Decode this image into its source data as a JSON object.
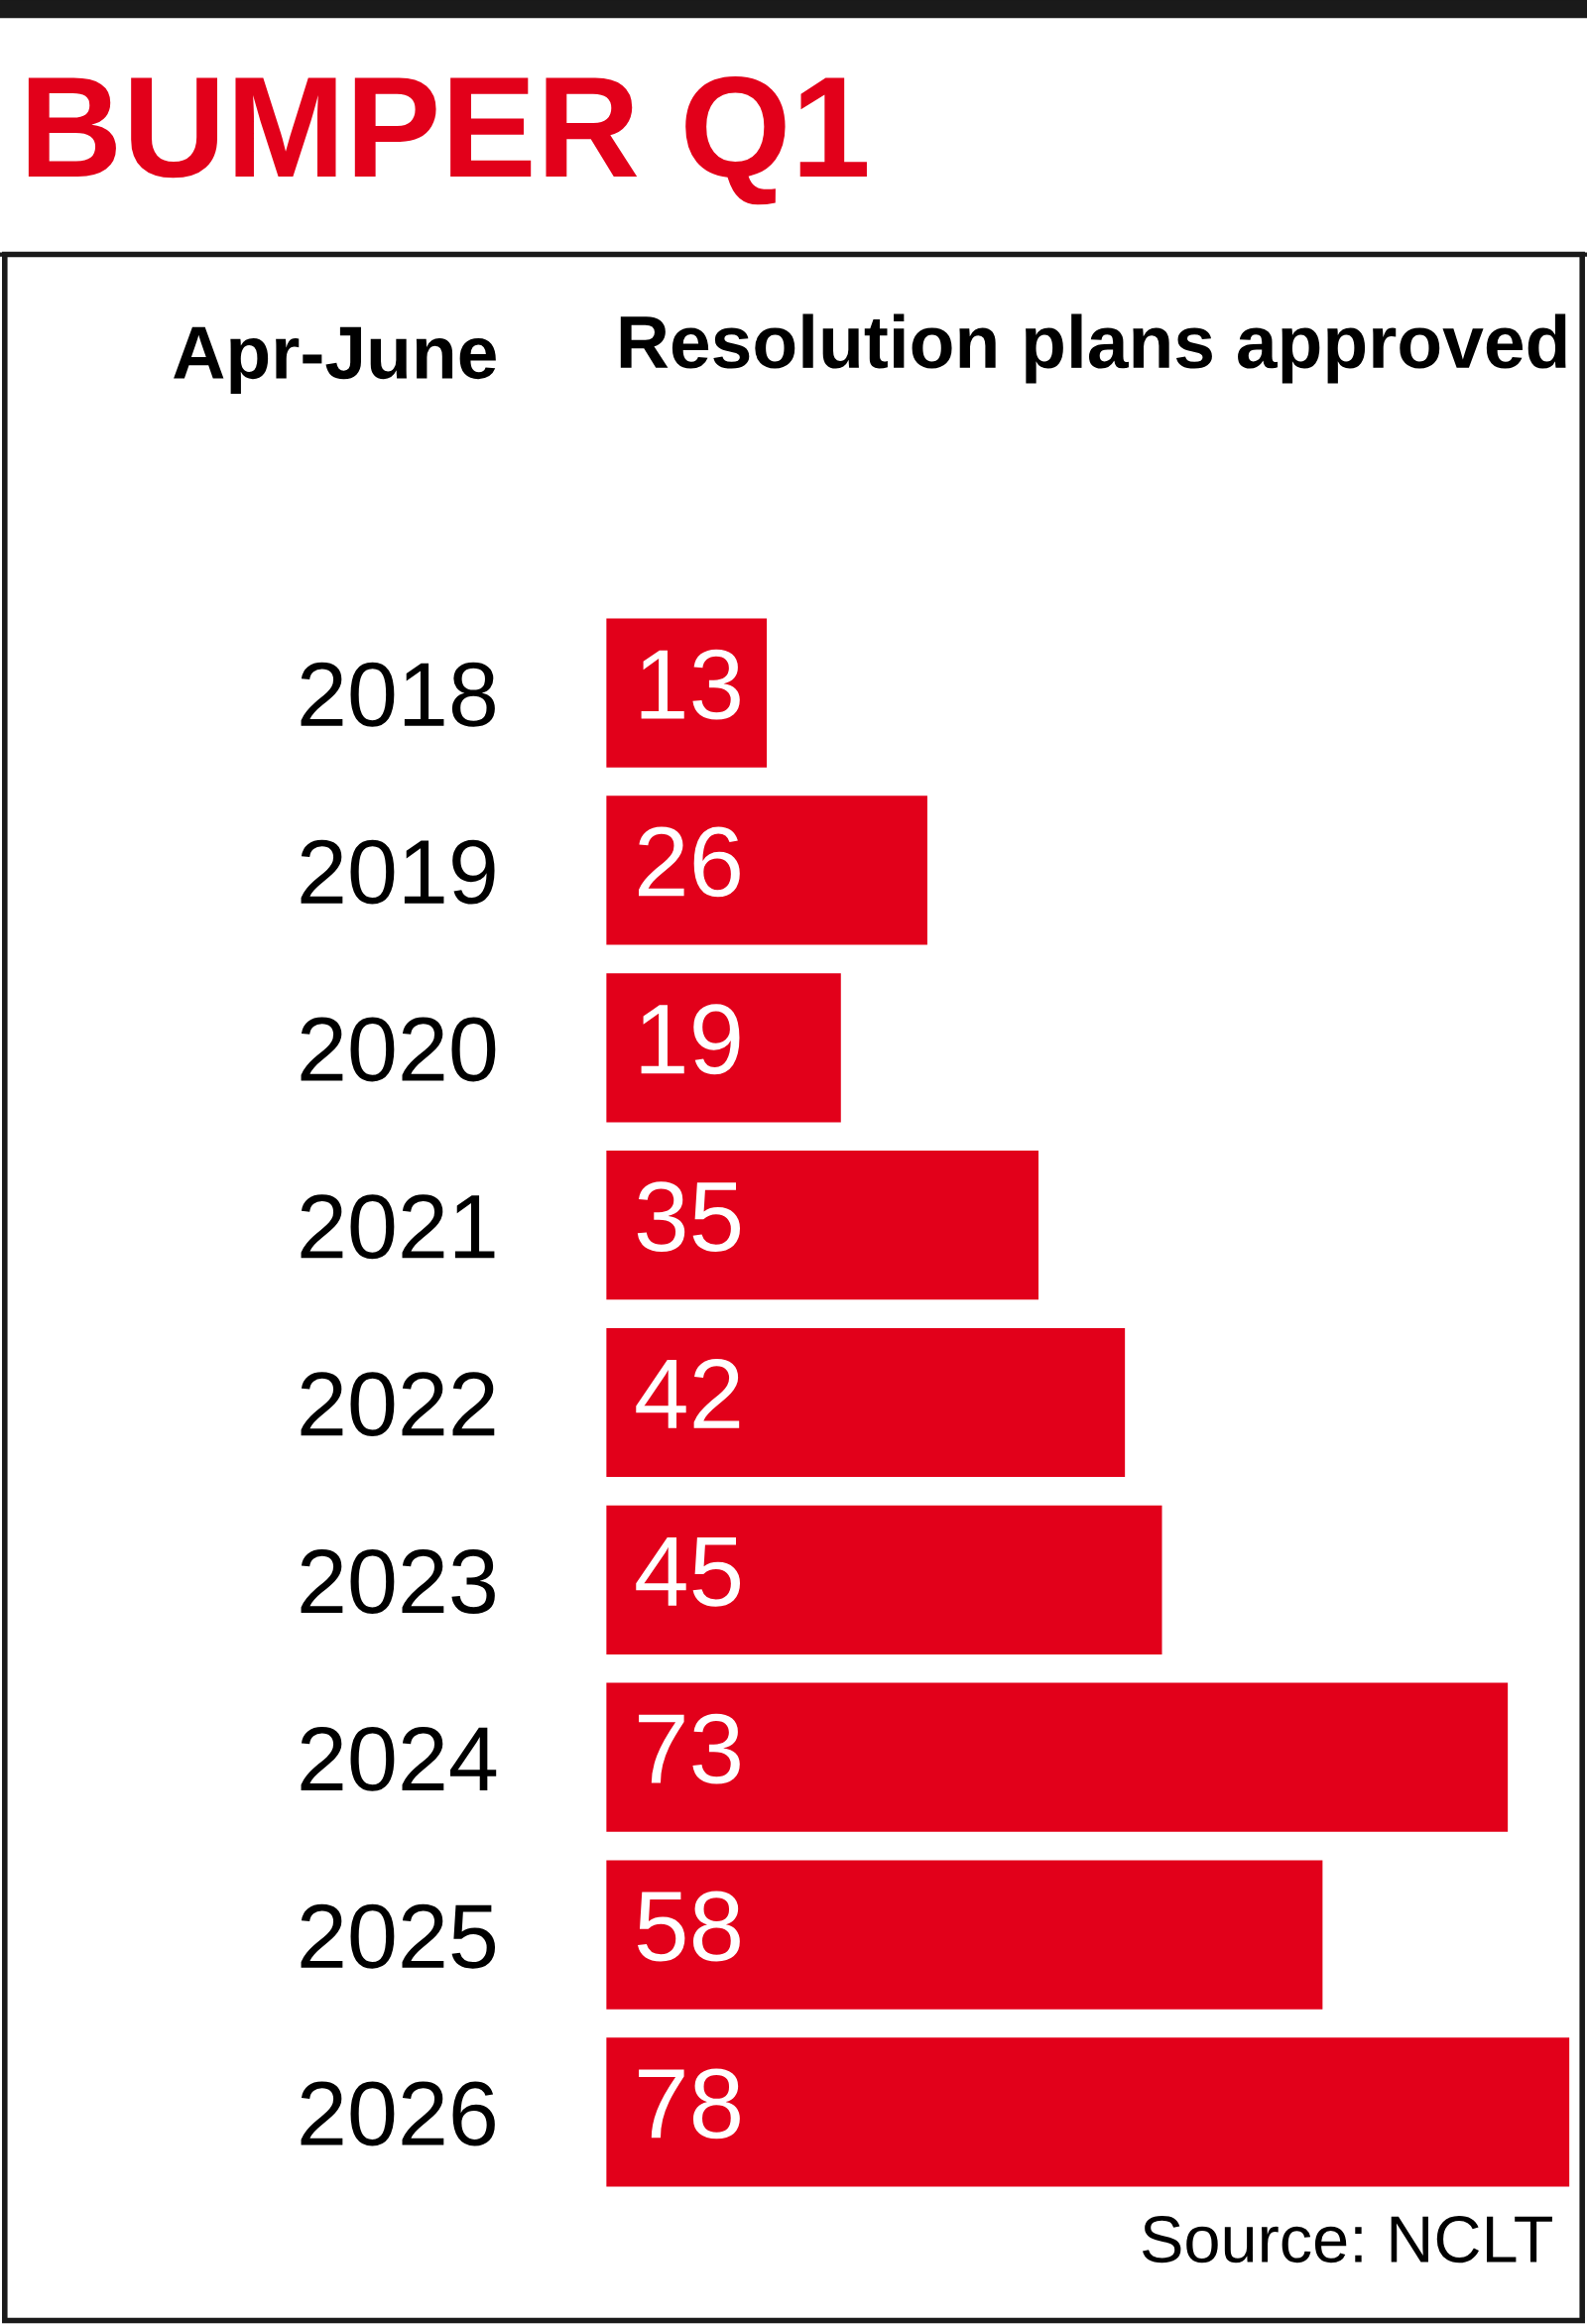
{
  "chart_data": {
    "type": "bar",
    "orientation": "horizontal",
    "title": "BUMPER Q1",
    "ylabel": "Apr-June",
    "xlabel": "Resolution plans approved",
    "categories": [
      "2018",
      "2019",
      "2020",
      "2021",
      "2022",
      "2023",
      "2024",
      "2025",
      "2026"
    ],
    "values": [
      13,
      26,
      19,
      35,
      42,
      45,
      73,
      58,
      78
    ],
    "color": "#e2001a",
    "data_labels": true,
    "tick_labels": "y",
    "annotations": [
      "Source: NCLT"
    ]
  }
}
